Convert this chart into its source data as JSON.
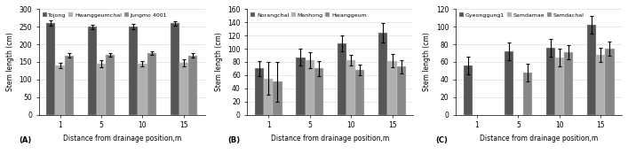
{
  "panel_A": {
    "legend": [
      "Tojong",
      "Hwanggeumchal",
      "Jungmo 4001"
    ],
    "colors": [
      "#555555",
      "#b0b0b0",
      "#888888"
    ],
    "x_labels": [
      "1",
      "5",
      "10",
      "15"
    ],
    "xlabel": "Distance from drainage position,m",
    "ylabel": "Stem length (cm)",
    "ylim": [
      0,
      300
    ],
    "yticks": [
      0,
      50,
      100,
      150,
      200,
      250,
      300
    ],
    "label": "(A)",
    "values": [
      [
        260,
        250,
        250,
        260
      ],
      [
        140,
        145,
        145,
        148
      ],
      [
        168,
        170,
        175,
        168
      ]
    ],
    "errors": [
      [
        8,
        6,
        8,
        7
      ],
      [
        8,
        10,
        8,
        10
      ],
      [
        6,
        6,
        6,
        6
      ]
    ]
  },
  "panel_B": {
    "legend": [
      "Norangchal",
      "Manhong",
      "Hwanggeum"
    ],
    "colors": [
      "#555555",
      "#b0b0b0",
      "#888888"
    ],
    "x_labels": [
      "1",
      "5",
      "10",
      "15"
    ],
    "xlabel": "Distance from drainage position,m",
    "ylabel": "Stem length (cm)",
    "ylim": [
      0,
      160
    ],
    "yticks": [
      0,
      20,
      40,
      60,
      80,
      100,
      120,
      140,
      160
    ],
    "label": "(B)",
    "values": [
      [
        70,
        87,
        108,
        124
      ],
      [
        55,
        83,
        83,
        82
      ],
      [
        50,
        70,
        68,
        73
      ]
    ],
    "errors": [
      [
        12,
        13,
        12,
        15
      ],
      [
        25,
        12,
        8,
        10
      ],
      [
        30,
        12,
        8,
        10
      ]
    ]
  },
  "panel_C": {
    "legend": [
      "Gyeonggung1",
      "Samdamae",
      "Samdachal"
    ],
    "colors": [
      "#555555",
      "#b0b0b0",
      "#888888"
    ],
    "x_labels": [
      "1",
      "5",
      "10",
      "15"
    ],
    "xlabel": "Distance from drainage position,m",
    "ylabel": "Stem length (cm)",
    "ylim": [
      0,
      120
    ],
    "yticks": [
      0,
      20,
      40,
      60,
      80,
      100,
      120
    ],
    "label": "(C)",
    "values": [
      [
        56,
        72,
        76,
        102
      ],
      [
        -1,
        -1,
        65,
        68
      ],
      [
        -1,
        48,
        71,
        75
      ]
    ],
    "errors": [
      [
        10,
        10,
        10,
        10
      ],
      [
        -1,
        -1,
        10,
        8
      ],
      [
        -1,
        10,
        8,
        8
      ]
    ]
  }
}
